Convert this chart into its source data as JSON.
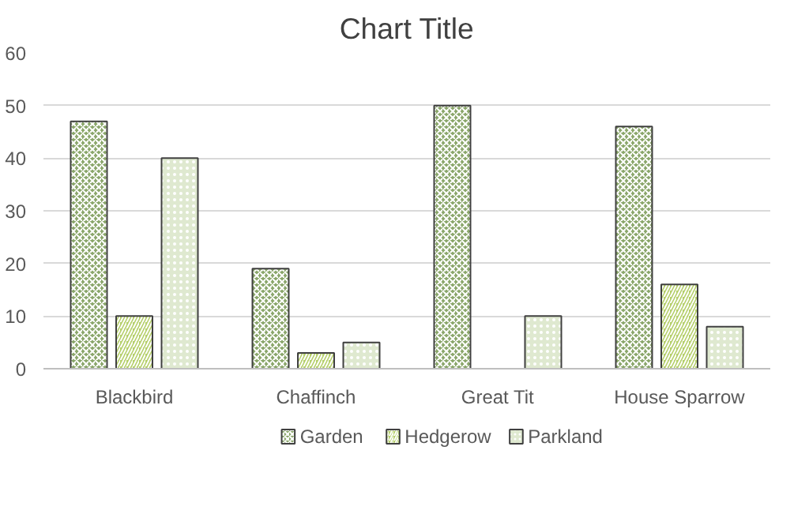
{
  "chart_data": {
    "type": "bar",
    "title": "Chart Title",
    "categories": [
      "Blackbird",
      "Chaffinch",
      "Great Tit",
      "House Sparrow"
    ],
    "series": [
      {
        "name": "Garden",
        "color": "#8aa66a",
        "values": [
          47,
          19,
          50,
          46
        ]
      },
      {
        "name": "Hedgerow",
        "color": "#b5cf6b",
        "values": [
          10,
          3,
          null,
          16
        ]
      },
      {
        "name": "Parkland",
        "color": "#dfe9d0",
        "values": [
          40,
          5,
          10,
          8
        ]
      }
    ],
    "ylim": [
      0,
      60
    ],
    "yticks": [
      0,
      10,
      20,
      30,
      40,
      50,
      60
    ],
    "grid": "y",
    "legend": "bottom"
  }
}
